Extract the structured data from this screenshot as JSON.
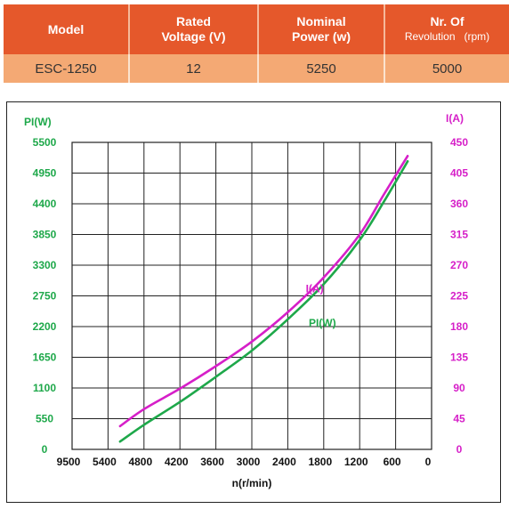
{
  "spec_table": {
    "headers": [
      {
        "line1": "Model",
        "line2": ""
      },
      {
        "line1": "Rated",
        "line2": "Voltage (V)"
      },
      {
        "line1": "Nominal",
        "line2": "Power (w)"
      },
      {
        "line1": "Nr. Of",
        "line2": "Revolution   (rpm)"
      }
    ],
    "row": [
      "ESC-1250",
      "12",
      "5250",
      "5000"
    ],
    "colors": {
      "header_bg": "#e5582b",
      "row_bg": "#f4a974"
    }
  },
  "chart_data": {
    "type": "line",
    "title": "",
    "xlabel": "n(r/min)",
    "ylabel_left": "PI(W)",
    "ylabel_right": "I(A)",
    "x_ticks": [
      9500,
      5400,
      4800,
      4200,
      3600,
      3000,
      2400,
      1800,
      1200,
      600,
      0
    ],
    "x_ticks_text": [
      "9500",
      "5400",
      "4800",
      "4200",
      "3600",
      "3000",
      "2400",
      "1800",
      "1200",
      "600",
      "0"
    ],
    "y_left_ticks": [
      0,
      550,
      1100,
      1650,
      2200,
      2750,
      3300,
      3850,
      4400,
      4950,
      5500
    ],
    "y_left_ticks_text": [
      "0",
      "550",
      "1100",
      "1650",
      "2200",
      "2750",
      "3300",
      "3850",
      "4400",
      "4950",
      "5500"
    ],
    "y_right_ticks": [
      0,
      45,
      90,
      135,
      180,
      225,
      270,
      315,
      360,
      405,
      450
    ],
    "y_right_ticks_text": [
      "0",
      "45",
      "90",
      "135",
      "180",
      "225",
      "270",
      "315",
      "360",
      "405",
      "450"
    ],
    "ylim_left": [
      0,
      5500
    ],
    "ylim_right": [
      0,
      450
    ],
    "grid": true,
    "series": [
      {
        "name": "I(A)",
        "axis": "right",
        "color": "#d61fc8",
        "x": [
          5200,
          4800,
          4200,
          3600,
          3000,
          2400,
          1800,
          1200,
          800,
          400
        ],
        "y": [
          34,
          59,
          89,
          122,
          158,
          201,
          252,
          315,
          373,
          430
        ]
      },
      {
        "name": "PI(W)",
        "axis": "left",
        "color": "#1ea84a",
        "x": [
          5200,
          4800,
          4200,
          3600,
          3000,
          2400,
          1800,
          1200,
          800,
          400
        ],
        "y": [
          140,
          440,
          850,
          1300,
          1770,
          2330,
          2960,
          3750,
          4430,
          5160
        ]
      }
    ],
    "annotations": [
      {
        "text": "I(A)",
        "series": "I(A)",
        "x": 2100,
        "y": 230
      },
      {
        "text": "PI(W)",
        "series": "PI(W)",
        "x": 2050,
        "y": 2200
      }
    ]
  }
}
